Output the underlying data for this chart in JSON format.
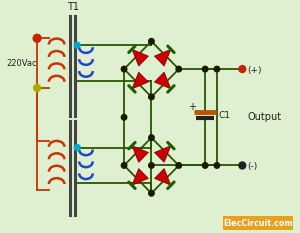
{
  "bg_color": "#dff0d0",
  "fig_w": 3.0,
  "fig_h": 2.33,
  "dpi": 100,
  "watermark": "ElecCircuit.com",
  "watermark_bg": "#e8a020",
  "label_220vac": "220Vac",
  "label_T1": "T1",
  "label_output": "Output",
  "label_C1": "C1",
  "label_plus": "(+)",
  "label_minus": "(-)",
  "wire_color": "#2a5500",
  "diode_red": "#cc0000",
  "diode_green": "#1a6000",
  "dot_color": "#1a1a00",
  "primary_color": "#cc3300",
  "secondary_color": "#2244cc",
  "core_color": "#444444",
  "red_dot": "#cc2200",
  "yellow_dot": "#aaaa00",
  "cyan_dot": "#00aacc"
}
